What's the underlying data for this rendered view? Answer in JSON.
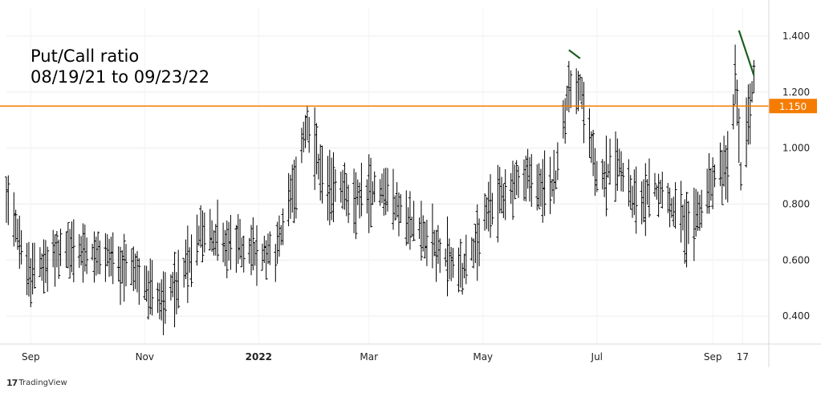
{
  "chart_data": {
    "type": "bar",
    "subtype": "ohlc",
    "title_line1": "Put/Call ratio",
    "title_line2": "08/19/21 to 09/23/22",
    "x_tick_labels": [
      "Sep",
      "Nov",
      "2022",
      "Mar",
      "May",
      "Jul",
      "Sep",
      "17"
    ],
    "y_tick_labels": [
      "0.400",
      "0.600",
      "0.800",
      "1.000",
      "1.200",
      "1.400"
    ],
    "y_ticks": [
      0.4,
      0.6,
      0.8,
      1.0,
      1.2,
      1.4
    ],
    "ylim": [
      0.3,
      1.5
    ],
    "x_range": [
      "2021-08-19",
      "2022-10-01"
    ],
    "grid": true,
    "horizontal_line": {
      "value": 1.15,
      "label": "1.150",
      "color": "#f57c00"
    },
    "trendlines": [
      {
        "from": [
          "2022-06-16",
          1.35
        ],
        "to": [
          "2022-06-22",
          1.32
        ],
        "color": "#1b5e20"
      },
      {
        "from": [
          "2022-09-15",
          1.42
        ],
        "to": [
          "2022-09-23",
          1.26
        ],
        "color": "#1b5e20"
      }
    ],
    "bar_color": "#000000",
    "series_summary": {
      "start": "2021-08-19",
      "end": "2022-09-23",
      "min": 0.33,
      "max": 1.4,
      "max_date": "2022-09-13"
    },
    "anchors": [
      [
        "2021-08-19",
        0.8
      ],
      [
        "2021-09-01",
        0.55
      ],
      [
        "2021-09-20",
        0.65
      ],
      [
        "2021-10-10",
        0.62
      ],
      [
        "2021-10-25",
        0.58
      ],
      [
        "2021-11-10",
        0.45
      ],
      [
        "2021-11-20",
        0.52
      ],
      [
        "2021-12-01",
        0.7
      ],
      [
        "2021-12-20",
        0.65
      ],
      [
        "2022-01-10",
        0.62
      ],
      [
        "2022-01-20",
        0.85
      ],
      [
        "2022-01-27",
        1.1
      ],
      [
        "2022-02-05",
        0.88
      ],
      [
        "2022-02-20",
        0.82
      ],
      [
        "2022-03-10",
        0.85
      ],
      [
        "2022-03-25",
        0.72
      ],
      [
        "2022-04-10",
        0.62
      ],
      [
        "2022-04-20",
        0.55
      ],
      [
        "2022-05-05",
        0.8
      ],
      [
        "2022-05-25",
        0.9
      ],
      [
        "2022-06-08",
        0.85
      ],
      [
        "2022-06-16",
        1.22
      ],
      [
        "2022-06-22",
        1.22
      ],
      [
        "2022-07-01",
        0.88
      ],
      [
        "2022-07-12",
        0.95
      ],
      [
        "2022-07-20",
        0.8
      ],
      [
        "2022-08-01",
        0.85
      ],
      [
        "2022-08-20",
        0.7
      ],
      [
        "2022-09-01",
        0.88
      ],
      [
        "2022-09-10",
        0.95
      ],
      [
        "2022-09-13",
        1.26
      ],
      [
        "2022-09-16",
        0.9
      ],
      [
        "2022-09-23",
        1.24
      ]
    ],
    "bar_spread": 0.11
  },
  "brand": {
    "logo": "17",
    "name": "TradingView"
  }
}
